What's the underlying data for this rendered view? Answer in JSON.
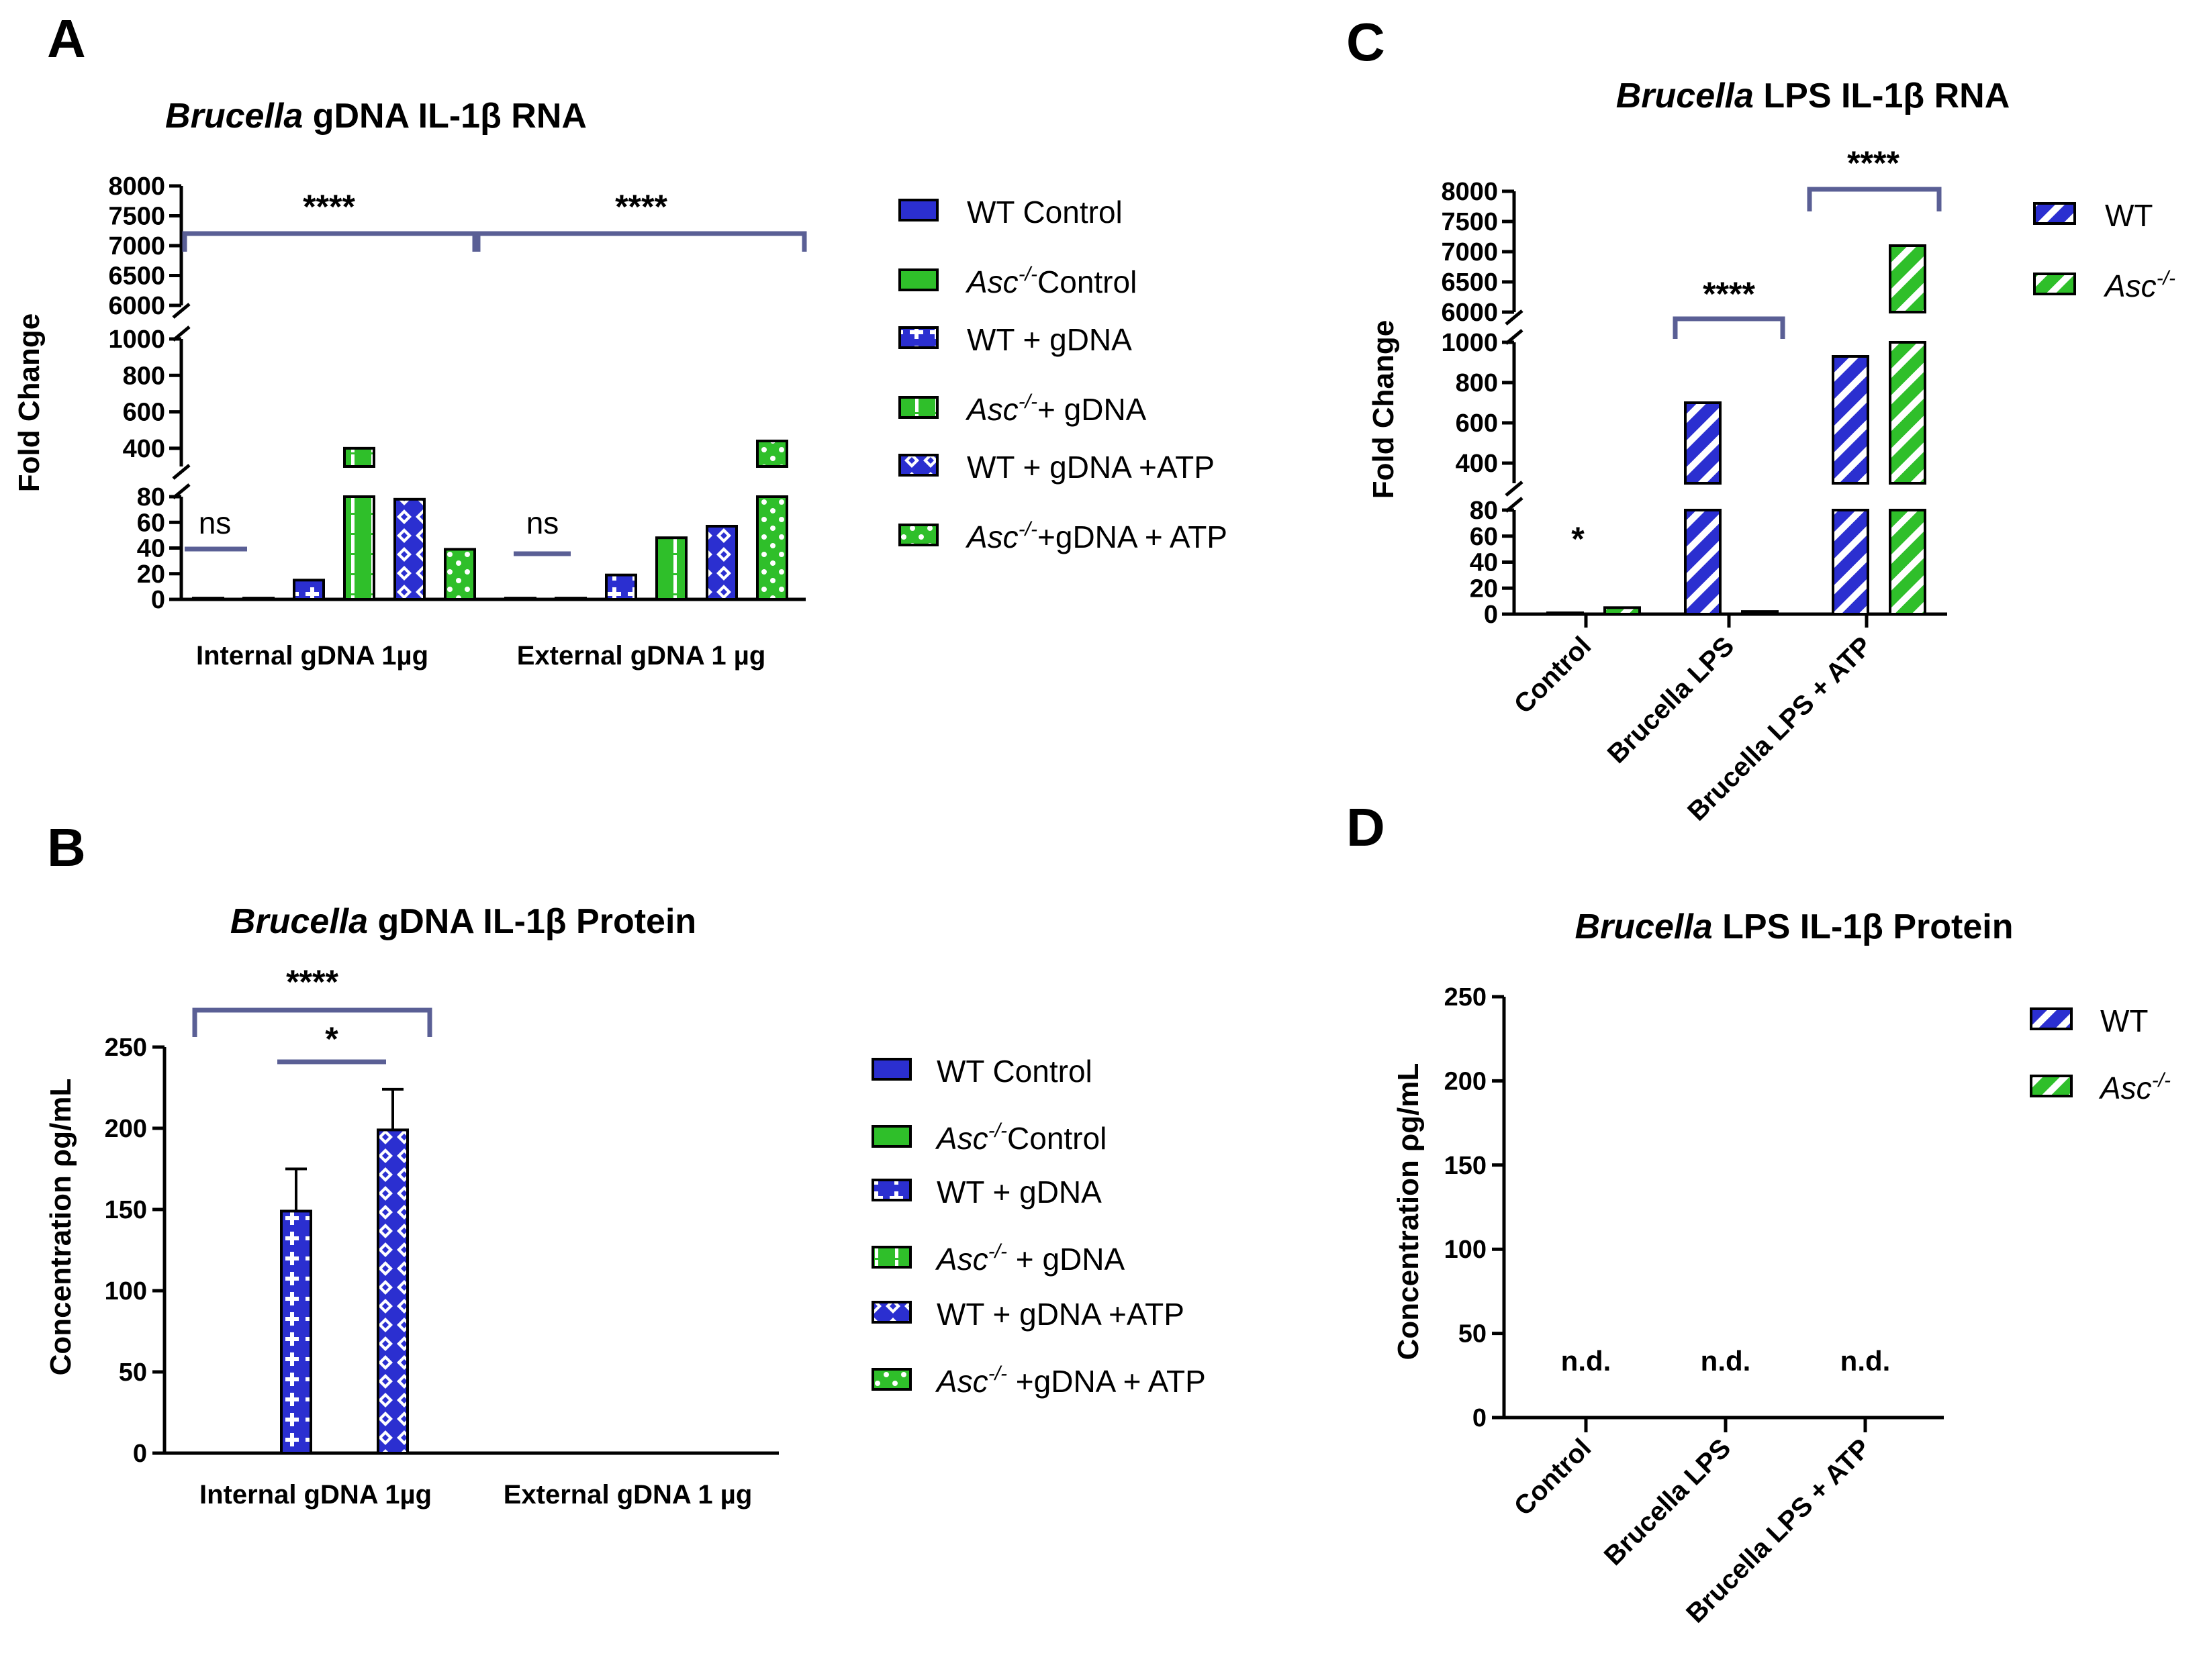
{
  "colors": {
    "blue": "#2b2fd0",
    "green": "#2fbf2a",
    "bracket": "#5a5f95"
  },
  "chart_data": [
    {
      "panel": "A",
      "type": "bar",
      "title_italic": "Brucella",
      "title_rest": " gDNA IL-1β RNA",
      "ylabel": "Fold Change",
      "y_segments": [
        {
          "range": [
            0,
            80
          ],
          "ticks": [
            "0",
            "20",
            "40",
            "60",
            "80"
          ]
        },
        {
          "range": [
            300,
            1000
          ],
          "ticks": [
            "400",
            "600",
            "800",
            "1000"
          ]
        },
        {
          "range": [
            6000,
            8000
          ],
          "ticks": [
            "6000",
            "6500",
            "7000",
            "7500",
            "8000"
          ]
        }
      ],
      "categories": [
        "Internal gDNA 1µg",
        "External gDNA 1 µg"
      ],
      "series": [
        {
          "name": "WT Control",
          "values": [
            1,
            1
          ]
        },
        {
          "name": "Asc-/- Control",
          "values": [
            1,
            1
          ]
        },
        {
          "name": "WT + gDNA",
          "values": [
            15,
            19
          ]
        },
        {
          "name": "Asc-/- + gDNA",
          "values": [
            400,
            48
          ]
        },
        {
          "name": "WT + gDNA + ATP",
          "values": [
            78,
            57
          ]
        },
        {
          "name": "Asc-/- + gDNA + ATP",
          "values": [
            39,
            440
          ]
        }
      ],
      "annotations": [
        "****",
        "****",
        "ns",
        "ns"
      ],
      "legend": [
        {
          "italic": "",
          "sup": "",
          "text": "WT Control"
        },
        {
          "italic": "Asc",
          "sup": "-/-",
          "text": "Control"
        },
        {
          "italic": "",
          "sup": "",
          "text": "WT + gDNA"
        },
        {
          "italic": "Asc",
          "sup": "-/-",
          "text": "+ gDNA"
        },
        {
          "italic": "",
          "sup": "",
          "text": "WT + gDNA +ATP"
        },
        {
          "italic": "Asc",
          "sup": "-/-",
          "text": "+gDNA + ATP"
        }
      ]
    },
    {
      "panel": "B",
      "type": "bar",
      "title_italic": "Brucella",
      "title_rest": " gDNA IL-1β Protein",
      "ylabel": "Concentration ρg/mL",
      "ylim": [
        0,
        250
      ],
      "yticks": [
        "0",
        "50",
        "100",
        "150",
        "200",
        "250"
      ],
      "categories": [
        "Internal gDNA 1µg",
        "External gDNA 1 µg"
      ],
      "series": [
        {
          "name": "WT Control",
          "values": [
            0,
            0
          ]
        },
        {
          "name": "Asc-/- Control",
          "values": [
            0,
            0
          ]
        },
        {
          "name": "WT + gDNA",
          "values": [
            149,
            0
          ],
          "errors": [
            26,
            0
          ]
        },
        {
          "name": "Asc-/- + gDNA",
          "values": [
            0,
            0
          ]
        },
        {
          "name": "WT + gDNA + ATP",
          "values": [
            199,
            0
          ],
          "errors": [
            25,
            0
          ]
        },
        {
          "name": "Asc-/- + gDNA + ATP",
          "values": [
            0,
            0
          ]
        }
      ],
      "annotations": [
        "****",
        "*"
      ],
      "legend": [
        {
          "italic": "",
          "sup": "",
          "text": "WT Control"
        },
        {
          "italic": "Asc",
          "sup": "-/-",
          "text": "Control"
        },
        {
          "italic": "",
          "sup": "",
          "text": "WT + gDNA"
        },
        {
          "italic": "Asc",
          "sup": "-/-",
          "text": " + gDNA"
        },
        {
          "italic": "",
          "sup": "",
          "text": "WT + gDNA +ATP"
        },
        {
          "italic": "Asc",
          "sup": "-/-",
          "text": " +gDNA + ATP"
        }
      ]
    },
    {
      "panel": "C",
      "type": "bar",
      "title_italic": "Brucella",
      "title_rest": " LPS IL-1β RNA",
      "ylabel": "Fold Change",
      "y_segments": [
        {
          "range": [
            0,
            80
          ],
          "ticks": [
            "0",
            "20",
            "40",
            "60",
            "80"
          ]
        },
        {
          "range": [
            300,
            1000
          ],
          "ticks": [
            "400",
            "600",
            "800",
            "1000"
          ]
        },
        {
          "range": [
            6000,
            8000
          ],
          "ticks": [
            "6000",
            "6500",
            "7000",
            "7500",
            "8000"
          ]
        }
      ],
      "categories": [
        "Control",
        "Brucella LPS",
        "Brucella LPS + ATP"
      ],
      "series": [
        {
          "name": "WT",
          "values": [
            1,
            700,
            930
          ]
        },
        {
          "name": "Asc-/-",
          "values": [
            5,
            2,
            7100
          ]
        }
      ],
      "annotations": [
        "*",
        "****",
        "****"
      ],
      "legend": [
        {
          "italic": "",
          "sup": "",
          "text": "WT"
        },
        {
          "italic": "Asc",
          "sup": "-/-",
          "text": ""
        }
      ]
    },
    {
      "panel": "D",
      "type": "bar",
      "title_italic": "Brucella",
      "title_rest": " LPS IL-1β Protein",
      "ylabel": "Concentration ρg/mL",
      "ylim": [
        0,
        250
      ],
      "yticks": [
        "0",
        "50",
        "100",
        "150",
        "200",
        "250"
      ],
      "categories": [
        "Control",
        "Brucella LPS",
        "Brucella LPS + ATP"
      ],
      "series": [
        {
          "name": "WT",
          "values": [
            0,
            0,
            0
          ]
        },
        {
          "name": "Asc-/-",
          "values": [
            0,
            0,
            0
          ]
        }
      ],
      "annotations": [
        "n.d.",
        "n.d.",
        "n.d."
      ],
      "legend": [
        {
          "italic": "",
          "sup": "",
          "text": "WT"
        },
        {
          "italic": "Asc",
          "sup": "-/-",
          "text": ""
        }
      ]
    }
  ]
}
